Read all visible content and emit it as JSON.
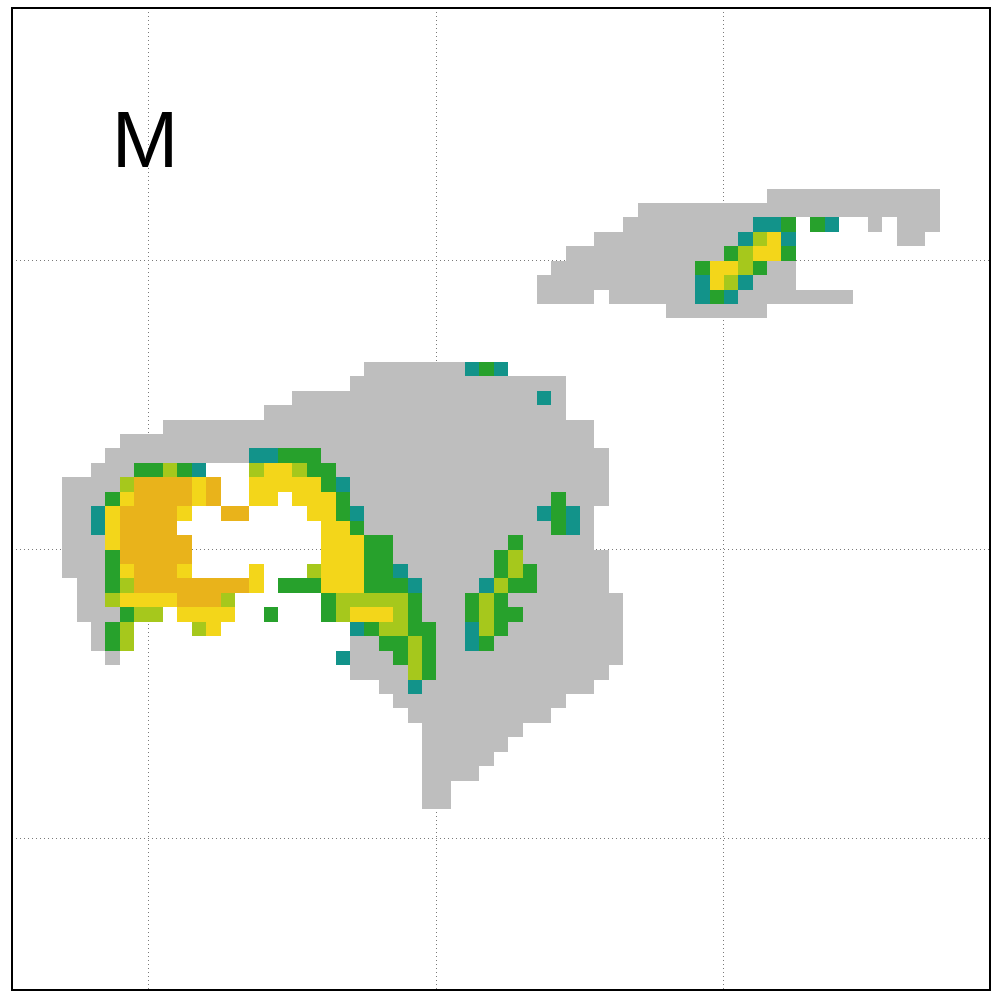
{
  "chart_data": {
    "type": "heatmap",
    "annotation": "M",
    "xlim": [
      0,
      68
    ],
    "ylim": [
      0,
      68
    ],
    "xticks": [
      9.5,
      29.5,
      49.5
    ],
    "yticks": [
      10.5,
      30.5,
      50.5
    ],
    "grid": true,
    "tick_labels": false,
    "levels": [
      1,
      2,
      3,
      4,
      5,
      6
    ],
    "colors": [
      "#bebebe",
      "#12938a",
      "#27a12c",
      "#a6c81c",
      "#f3d61a",
      "#e9b31b"
    ],
    "cells": [
      [
        53,
        64,
        55,
        1
      ],
      [
        44,
        64,
        54,
        1
      ],
      [
        43,
        51,
        53,
        1
      ],
      [
        52,
        53,
        53,
        2
      ],
      [
        54,
        54,
        53,
        3
      ],
      [
        56,
        56,
        53,
        3
      ],
      [
        57,
        57,
        53,
        2
      ],
      [
        60,
        60,
        53,
        1
      ],
      [
        62,
        64,
        53,
        1
      ],
      [
        41,
        50,
        52,
        1
      ],
      [
        51,
        51,
        52,
        2
      ],
      [
        52,
        52,
        52,
        4
      ],
      [
        53,
        53,
        52,
        5
      ],
      [
        54,
        54,
        52,
        2
      ],
      [
        62,
        63,
        52,
        1
      ],
      [
        39,
        49,
        51,
        1
      ],
      [
        50,
        50,
        51,
        3
      ],
      [
        51,
        51,
        51,
        4
      ],
      [
        52,
        53,
        51,
        5
      ],
      [
        54,
        54,
        51,
        3
      ],
      [
        38,
        47,
        50,
        1
      ],
      [
        48,
        48,
        50,
        3
      ],
      [
        49,
        50,
        50,
        5
      ],
      [
        51,
        51,
        50,
        4
      ],
      [
        52,
        52,
        50,
        3
      ],
      [
        53,
        54,
        50,
        1
      ],
      [
        37,
        47,
        49,
        1
      ],
      [
        48,
        48,
        49,
        2
      ],
      [
        49,
        49,
        49,
        5
      ],
      [
        50,
        50,
        49,
        4
      ],
      [
        51,
        51,
        49,
        2
      ],
      [
        52,
        54,
        49,
        1
      ],
      [
        37,
        40,
        48,
        1
      ],
      [
        42,
        47,
        48,
        1
      ],
      [
        48,
        48,
        48,
        2
      ],
      [
        49,
        49,
        48,
        3
      ],
      [
        50,
        50,
        48,
        2
      ],
      [
        51,
        58,
        48,
        1
      ],
      [
        46,
        52,
        47,
        1
      ],
      [
        25,
        31,
        43,
        1
      ],
      [
        32,
        32,
        43,
        2
      ],
      [
        33,
        33,
        43,
        3
      ],
      [
        34,
        34,
        43,
        2
      ],
      [
        24,
        38,
        42,
        1
      ],
      [
        20,
        36,
        41,
        1
      ],
      [
        37,
        37,
        41,
        2
      ],
      [
        38,
        38,
        41,
        1
      ],
      [
        18,
        38,
        40,
        1
      ],
      [
        11,
        40,
        39,
        1
      ],
      [
        8,
        40,
        38,
        1
      ],
      [
        7,
        16,
        37,
        1
      ],
      [
        17,
        18,
        37,
        2
      ],
      [
        19,
        21,
        37,
        3
      ],
      [
        22,
        41,
        37,
        1
      ],
      [
        6,
        8,
        36,
        1
      ],
      [
        9,
        10,
        36,
        3
      ],
      [
        11,
        11,
        36,
        4
      ],
      [
        12,
        12,
        36,
        3
      ],
      [
        13,
        13,
        36,
        2
      ],
      [
        17,
        17,
        36,
        4
      ],
      [
        18,
        19,
        36,
        5
      ],
      [
        20,
        20,
        36,
        4
      ],
      [
        21,
        22,
        36,
        3
      ],
      [
        23,
        41,
        36,
        1
      ],
      [
        4,
        7,
        35,
        1
      ],
      [
        8,
        8,
        35,
        4
      ],
      [
        9,
        12,
        35,
        6
      ],
      [
        13,
        13,
        35,
        5
      ],
      [
        14,
        14,
        35,
        6
      ],
      [
        17,
        21,
        35,
        5
      ],
      [
        22,
        22,
        35,
        3
      ],
      [
        23,
        23,
        35,
        2
      ],
      [
        24,
        41,
        35,
        1
      ],
      [
        4,
        6,
        34,
        1
      ],
      [
        7,
        7,
        34,
        3
      ],
      [
        8,
        8,
        34,
        5
      ],
      [
        9,
        12,
        34,
        6
      ],
      [
        13,
        13,
        34,
        5
      ],
      [
        14,
        14,
        34,
        6
      ],
      [
        17,
        18,
        34,
        5
      ],
      [
        20,
        22,
        34,
        5
      ],
      [
        23,
        23,
        34,
        3
      ],
      [
        24,
        37,
        34,
        1
      ],
      [
        38,
        38,
        34,
        3
      ],
      [
        39,
        41,
        34,
        1
      ],
      [
        4,
        5,
        33,
        1
      ],
      [
        6,
        6,
        33,
        2
      ],
      [
        7,
        7,
        33,
        5
      ],
      [
        8,
        11,
        33,
        6
      ],
      [
        12,
        12,
        33,
        5
      ],
      [
        15,
        16,
        33,
        6
      ],
      [
        21,
        22,
        33,
        5
      ],
      [
        23,
        23,
        33,
        3
      ],
      [
        24,
        24,
        33,
        2
      ],
      [
        25,
        36,
        33,
        1
      ],
      [
        37,
        37,
        33,
        2
      ],
      [
        38,
        38,
        33,
        3
      ],
      [
        39,
        39,
        33,
        2
      ],
      [
        40,
        40,
        33,
        1
      ],
      [
        4,
        5,
        32,
        1
      ],
      [
        6,
        6,
        32,
        2
      ],
      [
        7,
        7,
        32,
        5
      ],
      [
        8,
        11,
        32,
        6
      ],
      [
        22,
        23,
        32,
        5
      ],
      [
        24,
        24,
        32,
        3
      ],
      [
        25,
        37,
        32,
        1
      ],
      [
        38,
        38,
        32,
        3
      ],
      [
        39,
        39,
        32,
        2
      ],
      [
        40,
        40,
        32,
        1
      ],
      [
        4,
        6,
        31,
        1
      ],
      [
        7,
        7,
        31,
        5
      ],
      [
        8,
        12,
        31,
        6
      ],
      [
        22,
        24,
        31,
        5
      ],
      [
        25,
        26,
        31,
        3
      ],
      [
        27,
        34,
        31,
        1
      ],
      [
        35,
        35,
        31,
        3
      ],
      [
        36,
        40,
        31,
        1
      ],
      [
        4,
        6,
        30,
        1
      ],
      [
        7,
        7,
        30,
        3
      ],
      [
        8,
        12,
        30,
        6
      ],
      [
        22,
        24,
        30,
        5
      ],
      [
        25,
        26,
        30,
        3
      ],
      [
        27,
        33,
        30,
        1
      ],
      [
        34,
        34,
        30,
        3
      ],
      [
        35,
        35,
        30,
        4
      ],
      [
        36,
        41,
        30,
        1
      ],
      [
        4,
        6,
        29,
        1
      ],
      [
        7,
        7,
        29,
        3
      ],
      [
        8,
        8,
        29,
        5
      ],
      [
        9,
        11,
        29,
        6
      ],
      [
        12,
        12,
        29,
        5
      ],
      [
        17,
        17,
        29,
        5
      ],
      [
        21,
        21,
        29,
        4
      ],
      [
        22,
        24,
        29,
        5
      ],
      [
        25,
        26,
        29,
        3
      ],
      [
        27,
        27,
        29,
        2
      ],
      [
        28,
        33,
        29,
        1
      ],
      [
        34,
        34,
        29,
        3
      ],
      [
        35,
        35,
        29,
        4
      ],
      [
        36,
        36,
        29,
        3
      ],
      [
        37,
        41,
        29,
        1
      ],
      [
        5,
        6,
        28,
        1
      ],
      [
        7,
        7,
        28,
        3
      ],
      [
        8,
        8,
        28,
        4
      ],
      [
        9,
        16,
        28,
        6
      ],
      [
        17,
        17,
        28,
        5
      ],
      [
        19,
        21,
        28,
        3
      ],
      [
        22,
        24,
        28,
        5
      ],
      [
        25,
        27,
        28,
        3
      ],
      [
        28,
        28,
        28,
        2
      ],
      [
        29,
        32,
        28,
        1
      ],
      [
        33,
        33,
        28,
        2
      ],
      [
        34,
        34,
        28,
        4
      ],
      [
        35,
        36,
        28,
        3
      ],
      [
        37,
        41,
        28,
        1
      ],
      [
        5,
        6,
        27,
        1
      ],
      [
        7,
        7,
        27,
        4
      ],
      [
        8,
        11,
        27,
        5
      ],
      [
        12,
        14,
        27,
        6
      ],
      [
        15,
        15,
        27,
        4
      ],
      [
        22,
        22,
        27,
        3
      ],
      [
        23,
        27,
        27,
        4
      ],
      [
        28,
        28,
        27,
        3
      ],
      [
        29,
        31,
        27,
        1
      ],
      [
        32,
        32,
        27,
        3
      ],
      [
        33,
        33,
        27,
        4
      ],
      [
        34,
        34,
        27,
        3
      ],
      [
        35,
        42,
        27,
        1
      ],
      [
        5,
        7,
        26,
        1
      ],
      [
        8,
        8,
        26,
        3
      ],
      [
        9,
        10,
        26,
        4
      ],
      [
        12,
        15,
        26,
        5
      ],
      [
        18,
        18,
        26,
        3
      ],
      [
        22,
        22,
        26,
        3
      ],
      [
        23,
        23,
        26,
        4
      ],
      [
        24,
        26,
        26,
        5
      ],
      [
        27,
        27,
        26,
        4
      ],
      [
        28,
        28,
        26,
        3
      ],
      [
        29,
        31,
        26,
        1
      ],
      [
        32,
        32,
        26,
        3
      ],
      [
        33,
        33,
        26,
        4
      ],
      [
        34,
        35,
        26,
        3
      ],
      [
        36,
        42,
        26,
        1
      ],
      [
        6,
        6,
        25,
        1
      ],
      [
        7,
        7,
        25,
        3
      ],
      [
        8,
        8,
        25,
        4
      ],
      [
        13,
        13,
        25,
        4
      ],
      [
        14,
        14,
        25,
        5
      ],
      [
        24,
        24,
        25,
        2
      ],
      [
        25,
        25,
        25,
        3
      ],
      [
        26,
        27,
        25,
        4
      ],
      [
        28,
        29,
        25,
        3
      ],
      [
        30,
        31,
        25,
        1
      ],
      [
        32,
        32,
        25,
        2
      ],
      [
        33,
        33,
        25,
        4
      ],
      [
        34,
        34,
        25,
        3
      ],
      [
        35,
        42,
        25,
        1
      ],
      [
        6,
        6,
        24,
        1
      ],
      [
        7,
        7,
        24,
        3
      ],
      [
        8,
        8,
        24,
        4
      ],
      [
        24,
        25,
        24,
        1
      ],
      [
        26,
        27,
        24,
        3
      ],
      [
        28,
        28,
        24,
        4
      ],
      [
        29,
        29,
        24,
        3
      ],
      [
        30,
        31,
        24,
        1
      ],
      [
        32,
        32,
        24,
        2
      ],
      [
        33,
        33,
        24,
        3
      ],
      [
        34,
        42,
        24,
        1
      ],
      [
        7,
        7,
        23,
        1
      ],
      [
        23,
        23,
        23,
        2
      ],
      [
        24,
        26,
        23,
        1
      ],
      [
        27,
        27,
        23,
        3
      ],
      [
        28,
        28,
        23,
        4
      ],
      [
        29,
        29,
        23,
        3
      ],
      [
        30,
        42,
        23,
        1
      ],
      [
        24,
        27,
        22,
        1
      ],
      [
        28,
        28,
        22,
        4
      ],
      [
        29,
        29,
        22,
        3
      ],
      [
        30,
        41,
        22,
        1
      ],
      [
        26,
        27,
        21,
        1
      ],
      [
        28,
        28,
        21,
        2
      ],
      [
        29,
        40,
        21,
        1
      ],
      [
        27,
        38,
        20,
        1
      ],
      [
        28,
        37,
        19,
        1
      ],
      [
        29,
        35,
        18,
        1
      ],
      [
        29,
        34,
        17,
        1
      ],
      [
        29,
        33,
        16,
        1
      ],
      [
        29,
        32,
        15,
        1
      ],
      [
        29,
        30,
        14,
        1
      ],
      [
        29,
        30,
        13,
        1
      ]
    ]
  }
}
